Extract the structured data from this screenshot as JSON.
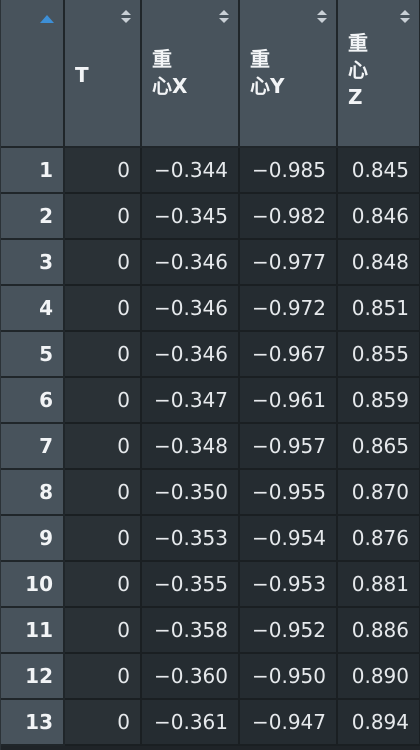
{
  "columns": [
    {
      "label": ""
    },
    {
      "label": "T"
    },
    {
      "label": "重\n心X"
    },
    {
      "label": "重\n心Y"
    },
    {
      "label": "重\n心\nZ"
    }
  ],
  "sort": {
    "active_column": "row-number",
    "direction": "ascending"
  },
  "rows": [
    {
      "n": "1",
      "t": "0",
      "x": "−0.344",
      "y": "−0.985",
      "z": "0.845"
    },
    {
      "n": "2",
      "t": "0",
      "x": "−0.345",
      "y": "−0.982",
      "z": "0.846"
    },
    {
      "n": "3",
      "t": "0",
      "x": "−0.346",
      "y": "−0.977",
      "z": "0.848"
    },
    {
      "n": "4",
      "t": "0",
      "x": "−0.346",
      "y": "−0.972",
      "z": "0.851"
    },
    {
      "n": "5",
      "t": "0",
      "x": "−0.346",
      "y": "−0.967",
      "z": "0.855"
    },
    {
      "n": "6",
      "t": "0",
      "x": "−0.347",
      "y": "−0.961",
      "z": "0.859"
    },
    {
      "n": "7",
      "t": "0",
      "x": "−0.348",
      "y": "−0.957",
      "z": "0.865"
    },
    {
      "n": "8",
      "t": "0",
      "x": "−0.350",
      "y": "−0.955",
      "z": "0.870"
    },
    {
      "n": "9",
      "t": "0",
      "x": "−0.353",
      "y": "−0.954",
      "z": "0.876"
    },
    {
      "n": "10",
      "t": "0",
      "x": "−0.355",
      "y": "−0.953",
      "z": "0.881"
    },
    {
      "n": "11",
      "t": "0",
      "x": "−0.358",
      "y": "−0.952",
      "z": "0.886"
    },
    {
      "n": "12",
      "t": "0",
      "x": "−0.360",
      "y": "−0.950",
      "z": "0.890"
    },
    {
      "n": "13",
      "t": "0",
      "x": "−0.361",
      "y": "−0.947",
      "z": "0.894"
    }
  ]
}
